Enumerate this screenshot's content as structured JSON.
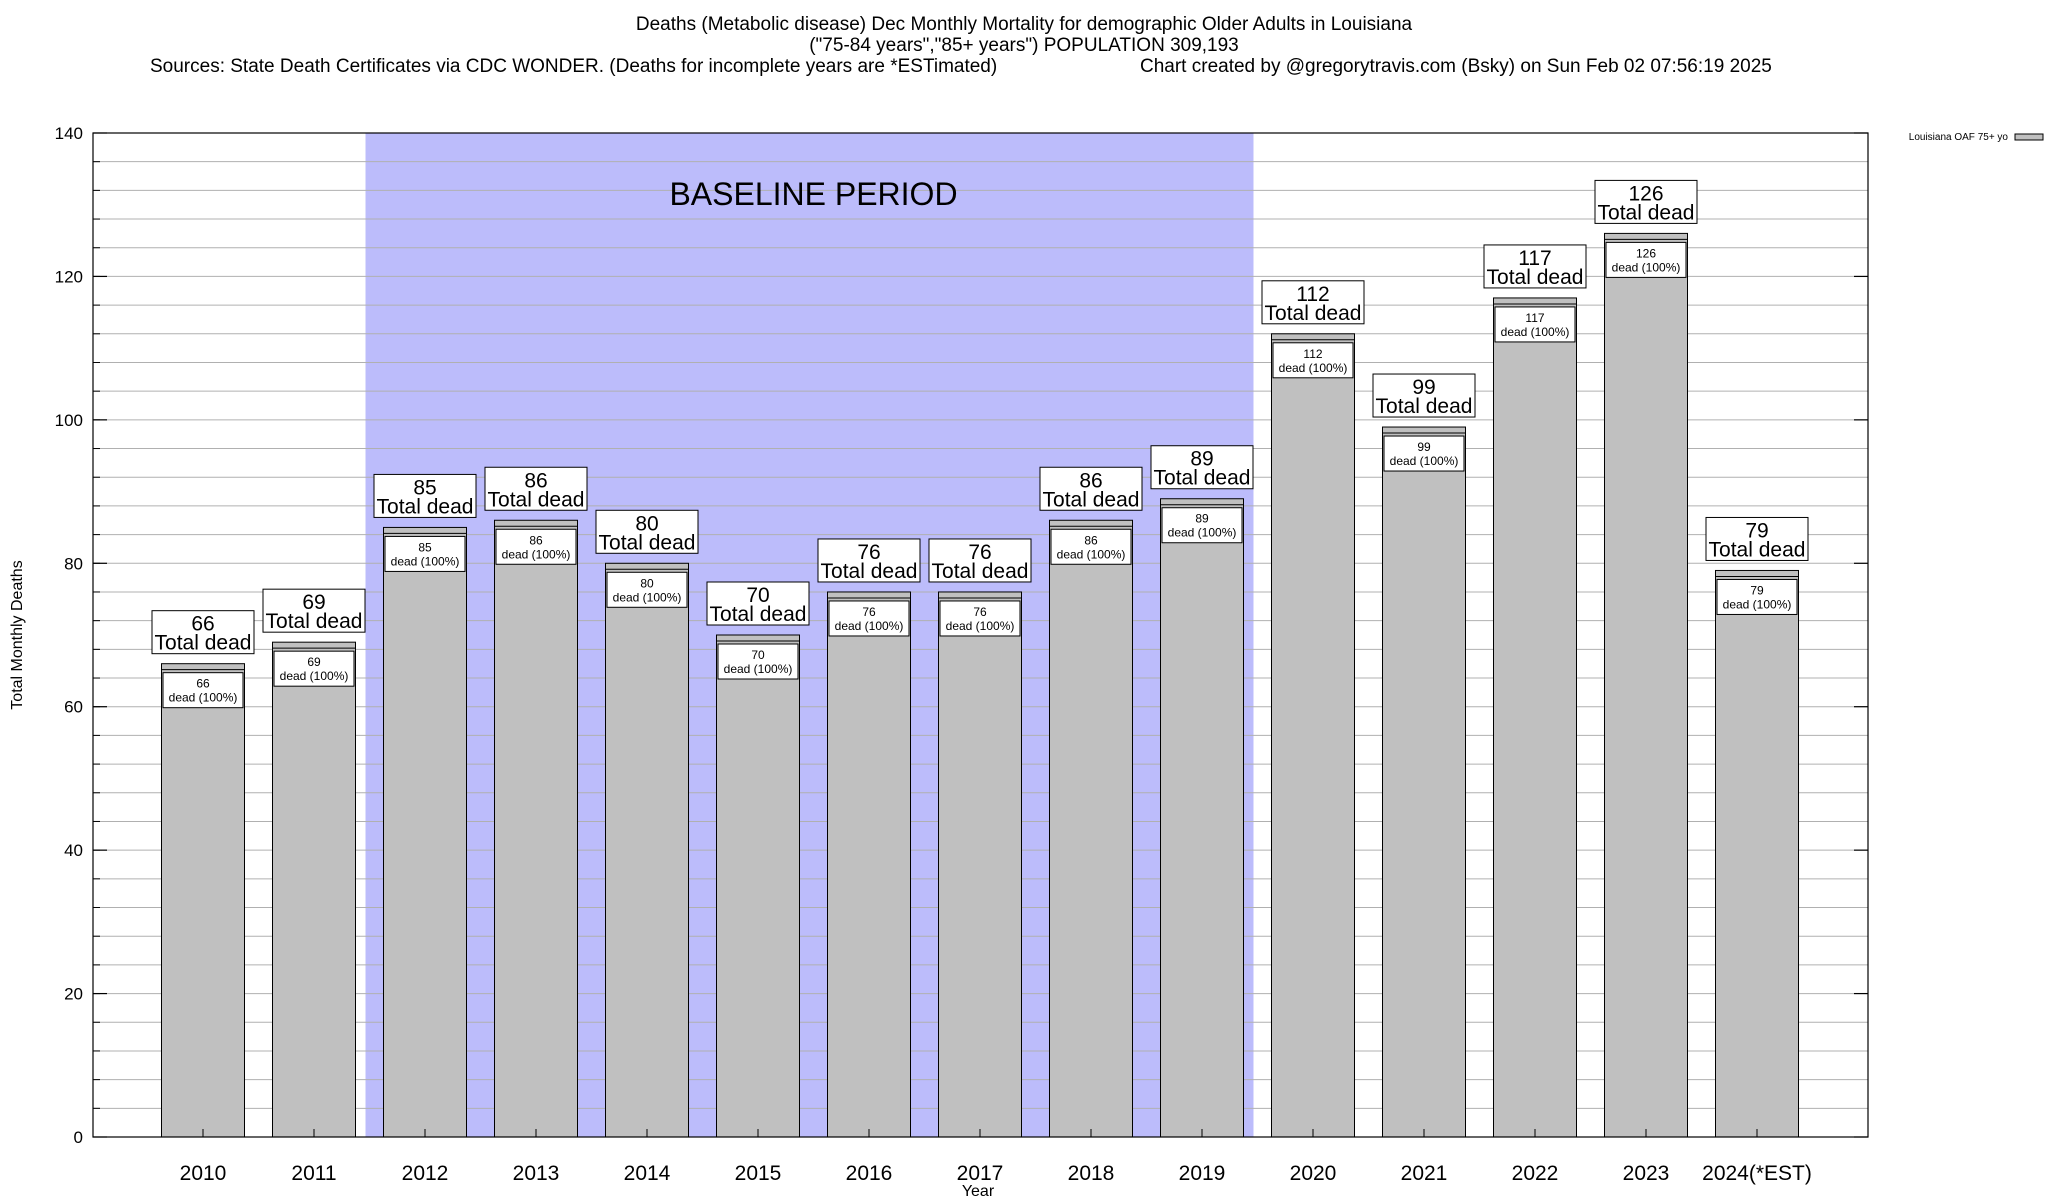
{
  "chart_data": {
    "type": "bar",
    "title": "Deaths (Metabolic disease) Dec Monthly Mortality for demographic Older Adults in Louisiana",
    "subtitle": "(\"75-84 years\",\"85+ years\") POPULATION 309,193",
    "sources": "Sources: State Death Certificates via CDC WONDER. (Deaths for incomplete years are *ESTimated)",
    "credit": "Chart created by @gregorytravis.com (Bsky) on Sun Feb 02 07:56:19 2025",
    "xlabel": "Year",
    "ylabel": "Total Monthly Deaths",
    "ylim": [
      0,
      140
    ],
    "yticks": [
      0,
      20,
      40,
      60,
      80,
      100,
      120,
      140
    ],
    "categories": [
      "2010",
      "2011",
      "2012",
      "2013",
      "2014",
      "2015",
      "2016",
      "2017",
      "2018",
      "2019",
      "2020",
      "2021",
      "2022",
      "2023",
      "2024(*EST)"
    ],
    "series": [
      {
        "name": "Louisiana OAF 75+ yo",
        "values": [
          66,
          69,
          85,
          86,
          80,
          70,
          76,
          76,
          86,
          89,
          112,
          99,
          117,
          126,
          79
        ]
      }
    ],
    "total_label_suffix": "Total dead",
    "inner_label_suffix": "dead (100%)",
    "baseline": {
      "label": "BASELINE PERIOD",
      "start_category": "2012",
      "end_category": "2019"
    },
    "colors": {
      "bar": "#c0c0c0",
      "baseline": "#bcbcfb",
      "grid": "#b0b0b0",
      "axis": "#000000"
    }
  }
}
